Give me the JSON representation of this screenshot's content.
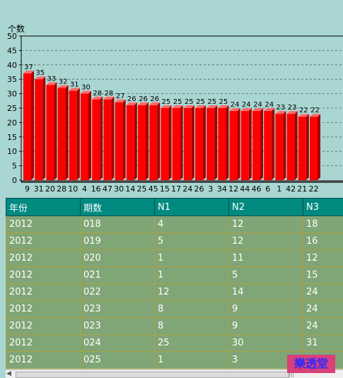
{
  "chart_data": {
    "type": "bar",
    "ylabel": "个数",
    "ylim": [
      0,
      50
    ],
    "yticks": [
      0,
      5,
      10,
      15,
      20,
      25,
      30,
      35,
      40,
      45,
      50
    ],
    "grid": "horizontal dashed",
    "bar_color": "#ff0000",
    "categories": [
      "9",
      "31",
      "20",
      "28",
      "10",
      "4",
      "16",
      "47",
      "30",
      "14",
      "25",
      "45",
      "15",
      "17",
      "24",
      "26",
      "3",
      "34",
      "12",
      "44",
      "46",
      "6",
      "1",
      "42",
      "21",
      "22"
    ],
    "values": [
      37,
      35,
      33,
      32,
      31,
      30,
      28,
      28,
      27,
      26,
      26,
      26,
      25,
      25,
      25,
      25,
      25,
      25,
      24,
      24,
      24,
      24,
      23,
      23,
      22,
      22
    ]
  },
  "table": {
    "headers": [
      "年份",
      "期数",
      "N1",
      "N2",
      "N3"
    ],
    "rows": [
      [
        "2012",
        "018",
        "4",
        "12",
        "18"
      ],
      [
        "2012",
        "019",
        "5",
        "12",
        "16"
      ],
      [
        "2012",
        "020",
        "1",
        "11",
        "12"
      ],
      [
        "2012",
        "021",
        "1",
        "5",
        "15"
      ],
      [
        "2012",
        "022",
        "12",
        "14",
        "24"
      ],
      [
        "2012",
        "023",
        "8",
        "9",
        "24"
      ],
      [
        "2012",
        "023",
        "8",
        "9",
        "24"
      ],
      [
        "2012",
        "024",
        "25",
        "30",
        "31"
      ],
      [
        "2012",
        "025",
        "1",
        "3",
        ""
      ]
    ]
  },
  "watermark": "樂透堂",
  "colors": {
    "background": "#a9d6d2",
    "header_bg": "#008a80",
    "row_bg": "#80a576",
    "bar": "#ff0000",
    "watermark_bg": "#d8407a",
    "watermark_text": "#2b2bff"
  }
}
